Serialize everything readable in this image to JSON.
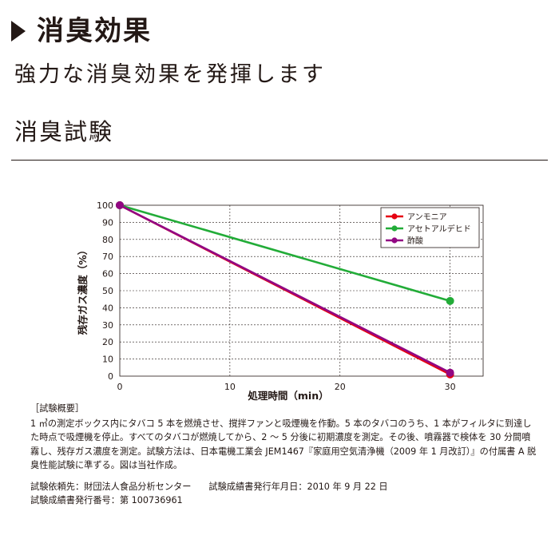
{
  "header": {
    "title": "消臭効果",
    "subtitle": "強力な消臭効果を発揮します",
    "section": "消臭試験"
  },
  "chart_data": {
    "type": "line",
    "xlabel": "処理時間（min）",
    "ylabel": "残存ガス濃度（%）",
    "xlim": [
      0,
      33
    ],
    "ylim": [
      0,
      100
    ],
    "xticks": [
      0,
      10,
      20,
      30
    ],
    "yticks": [
      0,
      10,
      20,
      30,
      40,
      50,
      60,
      70,
      80,
      90,
      100
    ],
    "grid": true,
    "legend_position": "top-right",
    "series": [
      {
        "name": "アンモニア",
        "color": "#e60012",
        "x": [
          0,
          30
        ],
        "y": [
          100,
          1
        ]
      },
      {
        "name": "アセトアルデヒド",
        "color": "#22ac38",
        "x": [
          0,
          30
        ],
        "y": [
          100,
          44
        ]
      },
      {
        "name": "酢酸",
        "color": "#920783",
        "x": [
          0,
          30
        ],
        "y": [
          100,
          2
        ]
      }
    ]
  },
  "notes": {
    "heading": "［試験概要］",
    "body": "1 ㎥の測定ボックス内にタバコ 5 本を燃焼させ、撹拌ファンと吸煙機を作動。5 本のタバコのうち、1 本がフィルタに到達した時点で吸煙機を停止。すべてのタバコが燃焼してから、2 ～ 5 分後に初期濃度を測定。その後、噴霧器で検体を 30 分間噴霧し、残存ガス濃度を測定。試験方法は、日本電機工業会 JEM1467『家庭用空気清浄機（2009 年 1 月改訂）』の付属書 A 脱臭性能試験に準ずる。図は当社作成。",
    "client": "試験依頼先：財団法人食品分析センター",
    "issue_date": "試験成績書発行年月日：2010 年 9 月 22 日",
    "report_no": "試験成績書発行番号：第 100736961"
  }
}
